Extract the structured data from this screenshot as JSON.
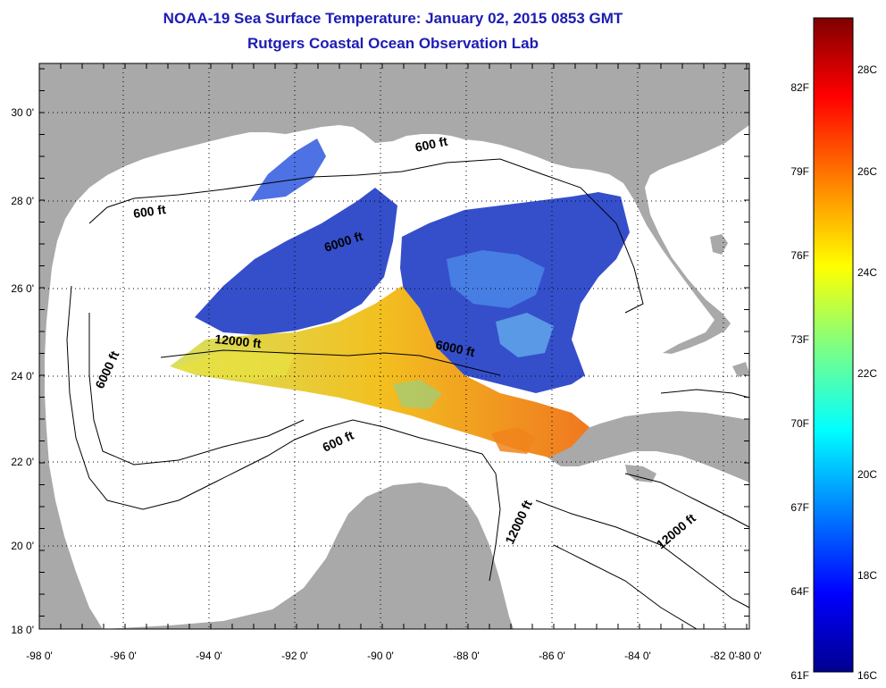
{
  "title": {
    "line1": "NOAA-19 Sea Surface Temperature:  January 02, 2015 0853 GMT",
    "line2": "Rutgers Coastal Ocean Observation Lab"
  },
  "map": {
    "lon_ticks": [
      "-98 0'",
      "-96 0'",
      "-94 0'",
      "-92 0'",
      "-90 0'",
      "-88 0'",
      "-86 0'",
      "-84 0'",
      "-82 0'",
      "-80 0'"
    ],
    "lat_ticks": [
      "30 0'",
      "28 0'",
      "26 0'",
      "24 0'",
      "22 0'",
      "20 0'",
      "18 0'"
    ],
    "contour_labels": [
      "600 ft",
      "600 ft",
      "6000 ft",
      "12000 ft",
      "6000 ft",
      "6000 ft",
      "600 ft",
      "12000 ft",
      "12000 ft"
    ],
    "colors": {
      "land": "#a9a9a9",
      "ocean": "#ffffff",
      "sst_cool": "#2a46c8",
      "sst_warm": "#f0b400"
    }
  },
  "colorbar": {
    "fahrenheit": [
      "82F",
      "79F",
      "76F",
      "73F",
      "70F",
      "67F",
      "64F",
      "61F"
    ],
    "celsius": [
      "28C",
      "26C",
      "24C",
      "22C",
      "20C",
      "18C",
      "16C"
    ],
    "colors": [
      "#00008f",
      "#0000ff",
      "#0080ff",
      "#00ffff",
      "#80ff80",
      "#ffff00",
      "#ff8000",
      "#ff0000",
      "#800000"
    ]
  }
}
